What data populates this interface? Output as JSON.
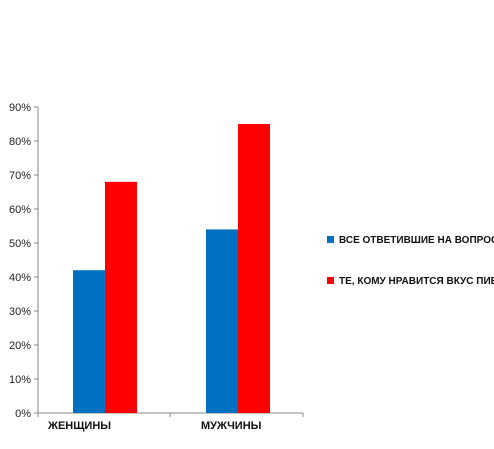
{
  "chart_data": {
    "type": "bar",
    "categories": [
      "ЖЕНЩИНЫ",
      "МУЖЧИНЫ"
    ],
    "category_labels_shown": [
      "ЖЕНЩИНЫ",
      "МУЖЧИНЫ"
    ],
    "series": [
      {
        "name": "ВСЕ ОТВЕТИВШИЕ НА ВОПРОС",
        "values": [
          42,
          54
        ],
        "color": "#0070c0"
      },
      {
        "name": "ТЕ, КОМУ НРАВИТСЯ ВКУС ПИВА",
        "values": [
          68,
          85
        ],
        "color": "#ff0000"
      }
    ],
    "y_ticks": [
      "0%",
      "10%",
      "20%",
      "30%",
      "40%",
      "50%",
      "60%",
      "70%",
      "80%",
      "90%"
    ],
    "ylim": [
      0,
      90
    ],
    "grid": false,
    "legend_position": "right"
  }
}
